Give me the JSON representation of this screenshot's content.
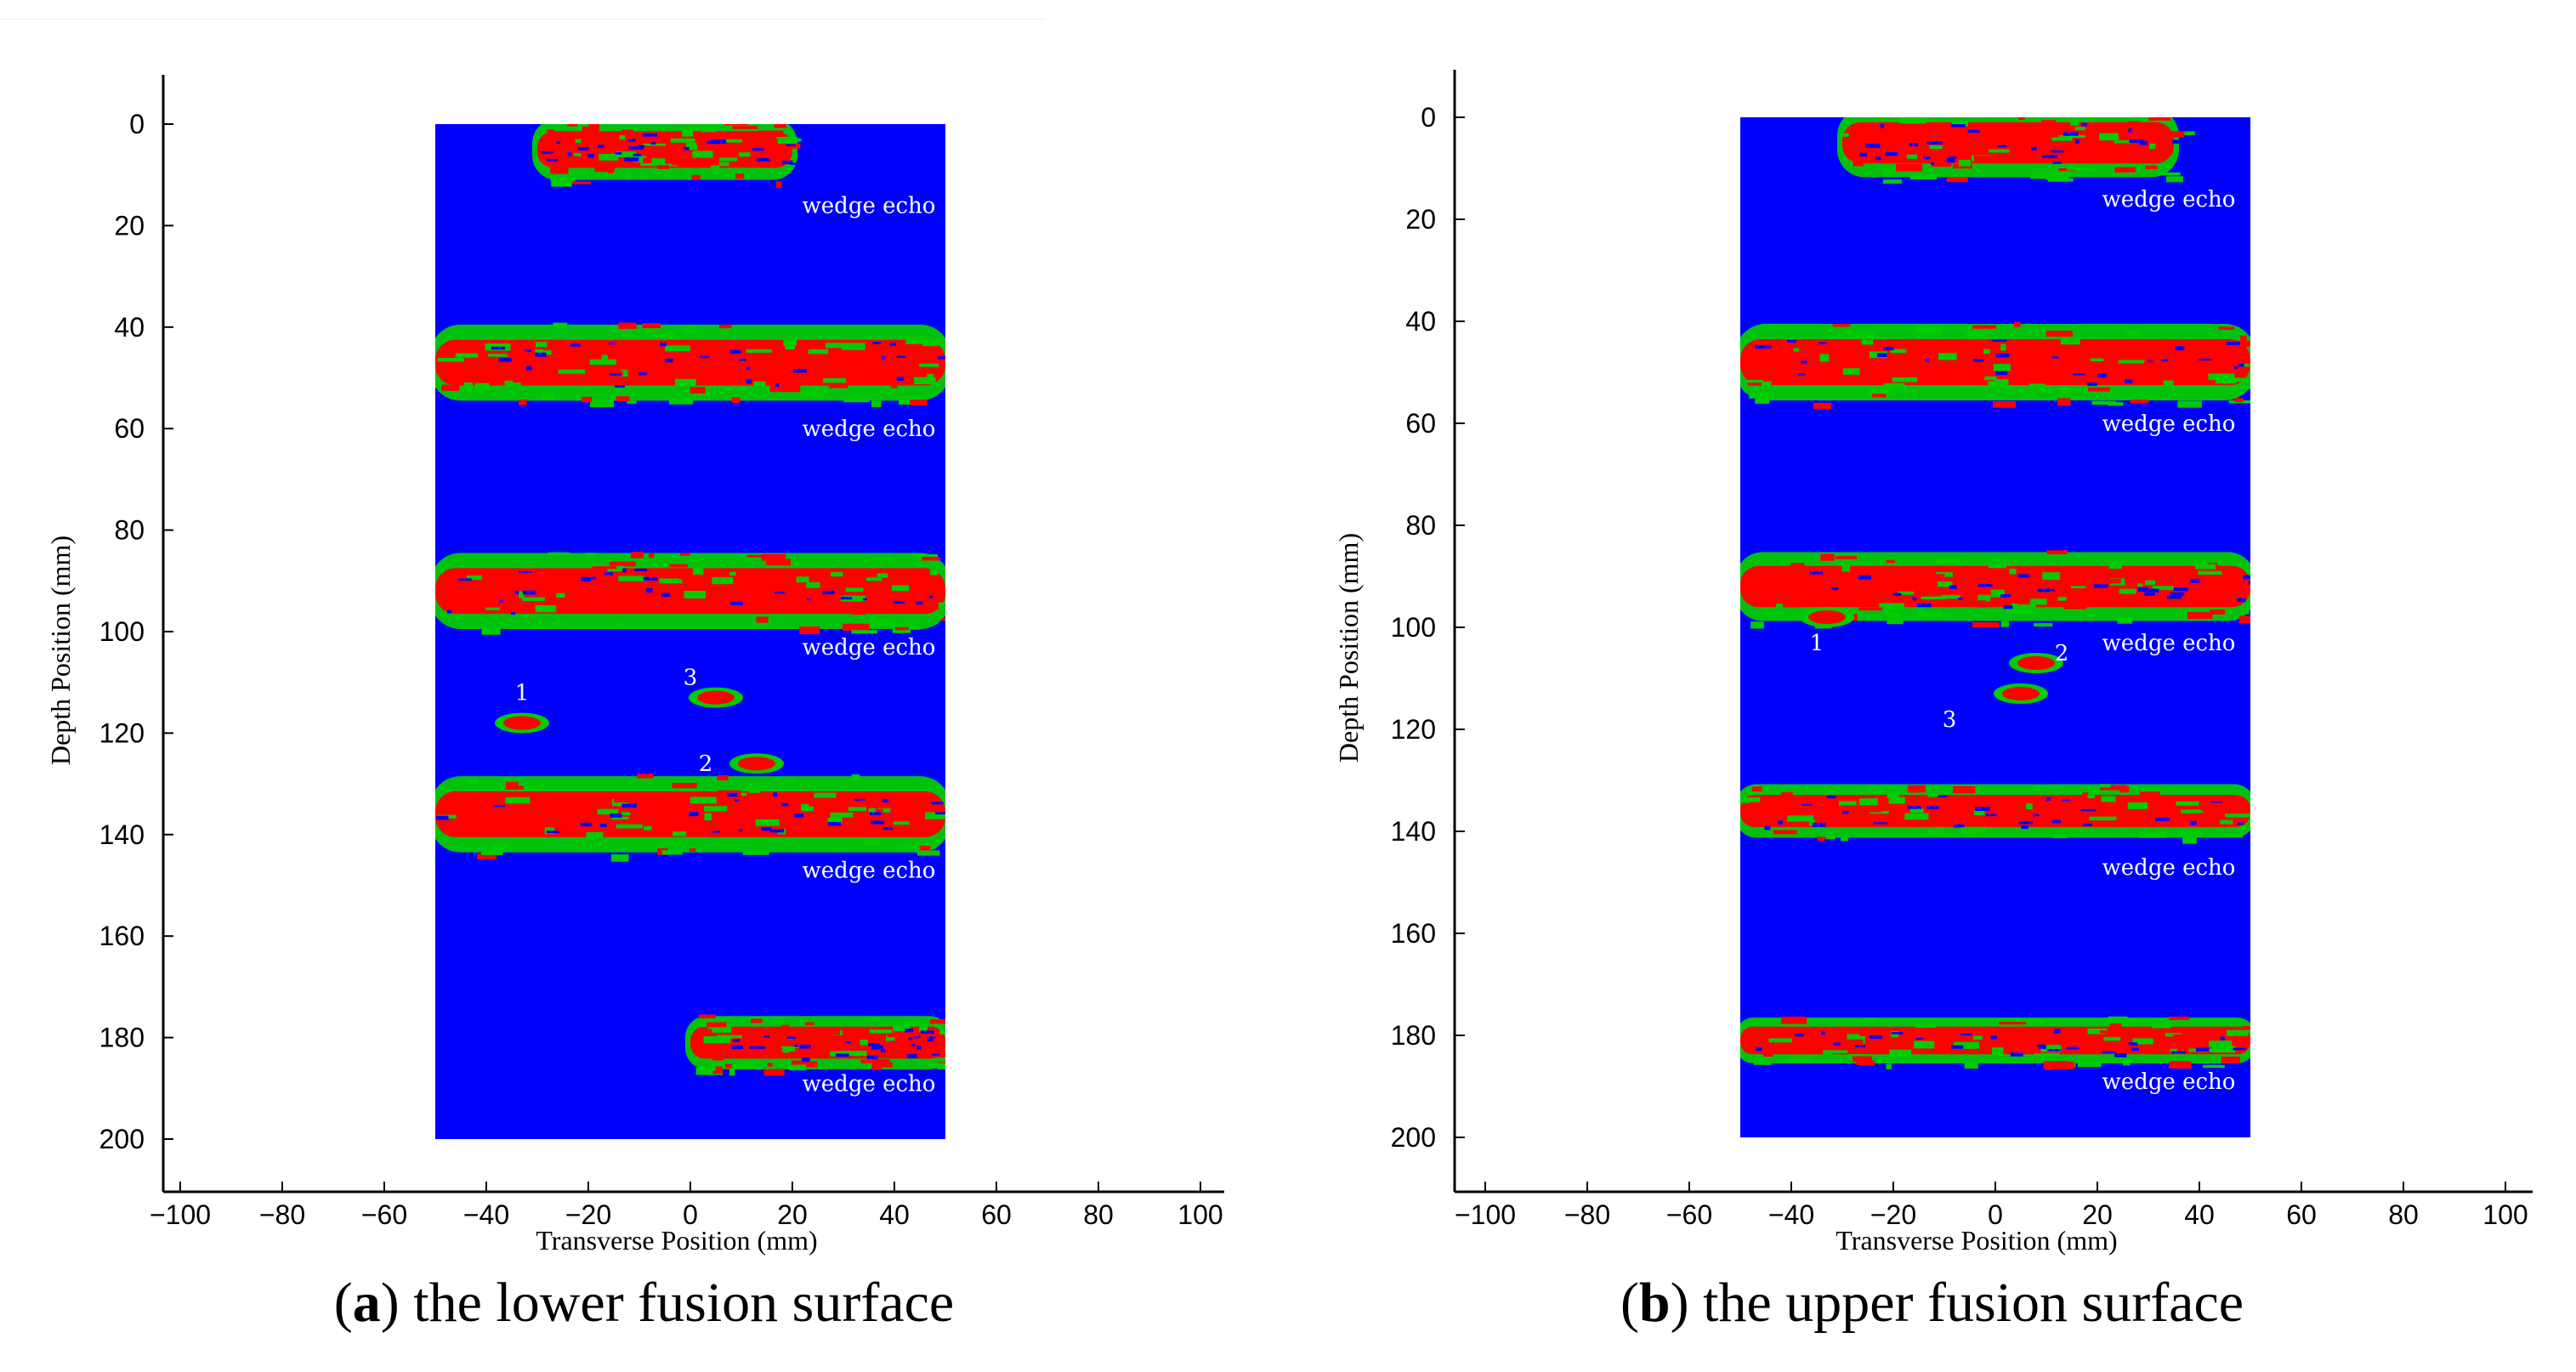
{
  "figure": {
    "panels": [
      {
        "letter": "a",
        "title": "the lower fusion surface"
      },
      {
        "letter": "b",
        "title": "the upper fusion surface"
      }
    ]
  },
  "chart_data": [
    {
      "type": "heatmap",
      "panel": "a",
      "title": "(a) the lower fusion surface",
      "xlabel": "Transverse Position  (mm)",
      "ylabel": "Depth Position (mm)",
      "xlim": [
        -105,
        105
      ],
      "ylim": [
        210,
        -10
      ],
      "xticks": [
        -100,
        -80,
        -60,
        -40,
        -20,
        0,
        20,
        40,
        60,
        80,
        100
      ],
      "yticks": [
        0,
        20,
        40,
        60,
        80,
        100,
        120,
        140,
        160,
        180,
        200
      ],
      "image_extent": {
        "x": [
          -50,
          50
        ],
        "y": [
          0,
          200
        ]
      },
      "colors": {
        "background": "#0000ff",
        "strong": "#ff0000",
        "weak": "#00cc00",
        "label": "#ffffff"
      },
      "echo_bands": [
        {
          "x_start": -30,
          "x_end": 20,
          "y_center": 5,
          "thickness": 8
        },
        {
          "x_start": -50,
          "x_end": 50,
          "y_center": 47,
          "thickness": 10
        },
        {
          "x_start": -50,
          "x_end": 50,
          "y_center": 92,
          "thickness": 10
        },
        {
          "x_start": -50,
          "x_end": 50,
          "y_center": 136,
          "thickness": 10
        },
        {
          "x_start": 0,
          "x_end": 50,
          "y_center": 181,
          "thickness": 7
        }
      ],
      "annotations": [
        {
          "text": "wedge echo",
          "x": 35,
          "y": 16
        },
        {
          "text": "wedge echo",
          "x": 35,
          "y": 60
        },
        {
          "text": "wedge echo",
          "x": 35,
          "y": 103
        },
        {
          "text": "wedge echo",
          "x": 35,
          "y": 147
        },
        {
          "text": "wedge echo",
          "x": 35,
          "y": 189
        }
      ],
      "defects": [
        {
          "label": "1",
          "x": -33,
          "y": 118,
          "label_x": -33,
          "label_y": 112
        },
        {
          "label": "2",
          "x": 13,
          "y": 126,
          "label_x": 3,
          "label_y": 126
        },
        {
          "label": "3",
          "x": 5,
          "y": 113,
          "label_x": 0,
          "label_y": 109
        }
      ]
    },
    {
      "type": "heatmap",
      "panel": "b",
      "title": "(b) the upper fusion surface",
      "xlabel": "Transverse Position (mm)",
      "ylabel": "Depth Position (mm)",
      "xlim": [
        -105,
        105
      ],
      "ylim": [
        210,
        -10
      ],
      "xticks": [
        -100,
        -80,
        -60,
        -40,
        -20,
        0,
        20,
        40,
        60,
        80,
        100
      ],
      "yticks": [
        0,
        20,
        40,
        60,
        80,
        100,
        120,
        140,
        160,
        180,
        200
      ],
      "image_extent": {
        "x": [
          -50,
          50
        ],
        "y": [
          0,
          200
        ]
      },
      "colors": {
        "background": "#0000ff",
        "strong": "#ff0000",
        "weak": "#00cc00",
        "label": "#ffffff"
      },
      "echo_bands": [
        {
          "x_start": -30,
          "x_end": 35,
          "y_center": 5,
          "thickness": 9
        },
        {
          "x_start": -50,
          "x_end": 50,
          "y_center": 48,
          "thickness": 10
        },
        {
          "x_start": -50,
          "x_end": 50,
          "y_center": 92,
          "thickness": 9
        },
        {
          "x_start": -50,
          "x_end": 50,
          "y_center": 136,
          "thickness": 7
        },
        {
          "x_start": -50,
          "x_end": 50,
          "y_center": 181,
          "thickness": 6
        }
      ],
      "annotations": [
        {
          "text": "wedge echo",
          "x": 34,
          "y": 16
        },
        {
          "text": "wedge echo",
          "x": 34,
          "y": 60
        },
        {
          "text": "wedge echo",
          "x": 34,
          "y": 103
        },
        {
          "text": "wedge echo",
          "x": 34,
          "y": 147
        },
        {
          "text": "wedge echo",
          "x": 34,
          "y": 189
        }
      ],
      "defects": [
        {
          "label": "1",
          "x": -33,
          "y": 98,
          "label_x": -35,
          "label_y": 103
        },
        {
          "label": "2",
          "x": 8,
          "y": 107,
          "label_x": 13,
          "label_y": 105
        },
        {
          "label": "3",
          "x": 5,
          "y": 113,
          "label_x": -9,
          "label_y": 118
        }
      ]
    }
  ]
}
